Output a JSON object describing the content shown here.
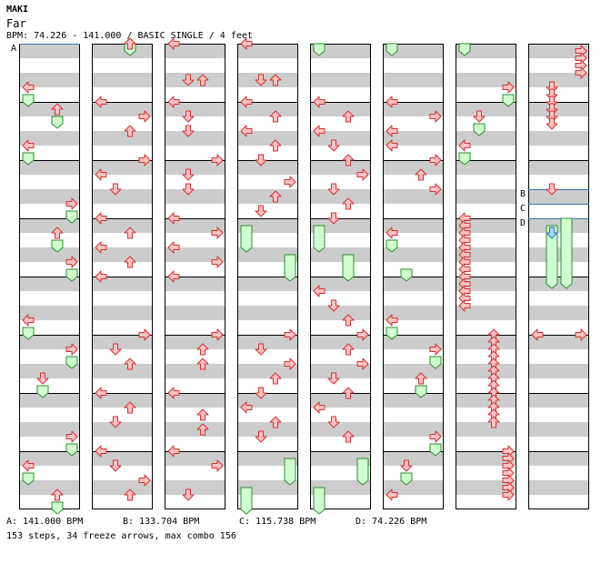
{
  "header": {
    "artist": "MAKI",
    "title": "Far",
    "info": "BPM: 74.226 - 141.000 / BASIC SINGLE / 4 feet"
  },
  "footer": {
    "bpm_changes": [
      {
        "label": "A",
        "text": "A: 141.000 BPM"
      },
      {
        "label": "B",
        "text": "B: 133.704 BPM"
      },
      {
        "label": "C",
        "text": "C: 115.738 BPM"
      },
      {
        "label": "D",
        "text": "D: 74.226 BPM"
      }
    ],
    "summary": "153 steps, 34 freeze arrows, max combo 156"
  },
  "colors": {
    "arrow_fill": "#ffc2c2",
    "arrow_stroke": "#d23232",
    "freeze_fill": "#cfffcf",
    "freeze_stroke": "#2e8b2e",
    "freeze_head_fill": "#a6d8ff",
    "freeze_head_stroke": "#2f6fb0",
    "stripe_gray": "#cccccc",
    "bpm_line": "#3b6fb5"
  },
  "chart_data": {
    "type": "step-chart",
    "arrow_directions": [
      "left",
      "down",
      "up",
      "right"
    ],
    "columns": 8,
    "measures_per_column": 8,
    "bpm_markers": [
      {
        "label": "A",
        "column": 0,
        "beat": 0
      },
      {
        "label": "B",
        "column": 7,
        "beat": 20
      },
      {
        "label": "C",
        "column": 7,
        "beat": 22
      },
      {
        "label": "D",
        "column": 7,
        "beat": 24
      }
    ],
    "freezes": [
      {
        "c": 0,
        "lane": 0,
        "b": 7,
        "e": 8
      },
      {
        "c": 0,
        "lane": 2,
        "b": 10,
        "e": 11
      },
      {
        "c": 0,
        "lane": 0,
        "b": 15,
        "e": 16
      },
      {
        "c": 0,
        "lane": 3,
        "b": 23,
        "e": 24
      },
      {
        "c": 0,
        "lane": 2,
        "b": 27,
        "e": 28
      },
      {
        "c": 0,
        "lane": 3,
        "b": 31,
        "e": 32
      },
      {
        "c": 0,
        "lane": 0,
        "b": 39,
        "e": 40
      },
      {
        "c": 0,
        "lane": 3,
        "b": 43,
        "e": 44
      },
      {
        "c": 0,
        "lane": 1,
        "b": 47,
        "e": 48
      },
      {
        "c": 0,
        "lane": 3,
        "b": 55,
        "e": 56
      },
      {
        "c": 0,
        "lane": 0,
        "b": 59,
        "e": 60
      },
      {
        "c": 0,
        "lane": 2,
        "b": 63,
        "e": 64
      },
      {
        "c": 1,
        "lane": 2,
        "b": 0,
        "e": 1
      },
      {
        "c": 3,
        "lane": 0,
        "b": 25,
        "e": 28
      },
      {
        "c": 3,
        "lane": 3,
        "b": 29,
        "e": 32
      },
      {
        "c": 3,
        "lane": 3,
        "b": 57,
        "e": 60
      },
      {
        "c": 3,
        "lane": 0,
        "b": 61,
        "e": 64
      },
      {
        "c": 4,
        "lane": 0,
        "b": 0,
        "e": 1
      },
      {
        "c": 4,
        "lane": 0,
        "b": 25,
        "e": 28
      },
      {
        "c": 4,
        "lane": 2,
        "b": 29,
        "e": 32
      },
      {
        "c": 4,
        "lane": 3,
        "b": 57,
        "e": 60
      },
      {
        "c": 4,
        "lane": 0,
        "b": 61,
        "e": 64
      },
      {
        "c": 5,
        "lane": 0,
        "b": 0,
        "e": 1
      },
      {
        "c": 5,
        "lane": 0,
        "b": 27,
        "e": 28
      },
      {
        "c": 5,
        "lane": 1,
        "b": 31,
        "e": 32
      },
      {
        "c": 5,
        "lane": 0,
        "b": 39,
        "e": 40
      },
      {
        "c": 5,
        "lane": 3,
        "b": 43,
        "e": 44
      },
      {
        "c": 5,
        "lane": 2,
        "b": 47,
        "e": 48
      },
      {
        "c": 5,
        "lane": 3,
        "b": 55,
        "e": 56
      },
      {
        "c": 5,
        "lane": 1,
        "b": 59,
        "e": 60
      },
      {
        "c": 6,
        "lane": 0,
        "b": 0,
        "e": 1
      },
      {
        "c": 6,
        "lane": 3,
        "b": 7,
        "e": 8
      },
      {
        "c": 6,
        "lane": 1,
        "b": 11,
        "e": 12
      },
      {
        "c": 6,
        "lane": 0,
        "b": 15,
        "e": 16
      },
      {
        "c": 7,
        "lane": 1,
        "b": 25,
        "e": 33
      },
      {
        "c": 7,
        "lane": 2,
        "b": 24,
        "e": 33
      }
    ],
    "arrows": [
      {
        "c": 0,
        "lane": 0,
        "b": 6
      },
      {
        "c": 0,
        "lane": 2,
        "b": 9
      },
      {
        "c": 0,
        "lane": 0,
        "b": 14
      },
      {
        "c": 0,
        "lane": 3,
        "b": 22
      },
      {
        "c": 0,
        "lane": 2,
        "b": 26
      },
      {
        "c": 0,
        "lane": 3,
        "b": 30
      },
      {
        "c": 0,
        "lane": 0,
        "b": 38
      },
      {
        "c": 0,
        "lane": 3,
        "b": 42
      },
      {
        "c": 0,
        "lane": 1,
        "b": 46
      },
      {
        "c": 0,
        "lane": 3,
        "b": 54
      },
      {
        "c": 0,
        "lane": 0,
        "b": 58
      },
      {
        "c": 0,
        "lane": 2,
        "b": 62
      },
      {
        "c": 1,
        "lane": 2,
        "b": 0
      },
      {
        "c": 1,
        "lane": 0,
        "b": 8
      },
      {
        "c": 1,
        "lane": 3,
        "b": 10
      },
      {
        "c": 1,
        "lane": 2,
        "b": 12
      },
      {
        "c": 1,
        "lane": 3,
        "b": 16
      },
      {
        "c": 1,
        "lane": 0,
        "b": 18
      },
      {
        "c": 1,
        "lane": 1,
        "b": 20
      },
      {
        "c": 1,
        "lane": 0,
        "b": 24
      },
      {
        "c": 1,
        "lane": 2,
        "b": 26
      },
      {
        "c": 1,
        "lane": 0,
        "b": 28
      },
      {
        "c": 1,
        "lane": 2,
        "b": 30
      },
      {
        "c": 1,
        "lane": 0,
        "b": 32
      },
      {
        "c": 1,
        "lane": 3,
        "b": 40
      },
      {
        "c": 1,
        "lane": 1,
        "b": 42
      },
      {
        "c": 1,
        "lane": 2,
        "b": 44
      },
      {
        "c": 1,
        "lane": 0,
        "b": 48
      },
      {
        "c": 1,
        "lane": 2,
        "b": 50
      },
      {
        "c": 1,
        "lane": 1,
        "b": 52
      },
      {
        "c": 1,
        "lane": 0,
        "b": 56
      },
      {
        "c": 1,
        "lane": 1,
        "b": 58
      },
      {
        "c": 1,
        "lane": 3,
        "b": 60
      },
      {
        "c": 1,
        "lane": 2,
        "b": 62
      },
      {
        "c": 2,
        "lane": 0,
        "b": 0
      },
      {
        "c": 2,
        "lane": 1,
        "b": 5
      },
      {
        "c": 2,
        "lane": 2,
        "b": 5
      },
      {
        "c": 2,
        "lane": 0,
        "b": 8
      },
      {
        "c": 2,
        "lane": 1,
        "b": 10
      },
      {
        "c": 2,
        "lane": 1,
        "b": 12
      },
      {
        "c": 2,
        "lane": 3,
        "b": 16
      },
      {
        "c": 2,
        "lane": 1,
        "b": 18
      },
      {
        "c": 2,
        "lane": 1,
        "b": 20
      },
      {
        "c": 2,
        "lane": 0,
        "b": 24
      },
      {
        "c": 2,
        "lane": 3,
        "b": 26
      },
      {
        "c": 2,
        "lane": 0,
        "b": 28
      },
      {
        "c": 2,
        "lane": 3,
        "b": 30
      },
      {
        "c": 2,
        "lane": 0,
        "b": 32
      },
      {
        "c": 2,
        "lane": 3,
        "b": 40
      },
      {
        "c": 2,
        "lane": 2,
        "b": 42
      },
      {
        "c": 2,
        "lane": 2,
        "b": 44
      },
      {
        "c": 2,
        "lane": 0,
        "b": 48
      },
      {
        "c": 2,
        "lane": 2,
        "b": 51
      },
      {
        "c": 2,
        "lane": 2,
        "b": 53
      },
      {
        "c": 2,
        "lane": 0,
        "b": 56
      },
      {
        "c": 2,
        "lane": 3,
        "b": 58
      },
      {
        "c": 2,
        "lane": 1,
        "b": 62
      },
      {
        "c": 3,
        "lane": 0,
        "b": 0
      },
      {
        "c": 3,
        "lane": 1,
        "b": 5
      },
      {
        "c": 3,
        "lane": 2,
        "b": 5
      },
      {
        "c": 3,
        "lane": 0,
        "b": 8
      },
      {
        "c": 3,
        "lane": 2,
        "b": 10
      },
      {
        "c": 3,
        "lane": 0,
        "b": 12
      },
      {
        "c": 3,
        "lane": 2,
        "b": 14
      },
      {
        "c": 3,
        "lane": 1,
        "b": 16
      },
      {
        "c": 3,
        "lane": 3,
        "b": 19
      },
      {
        "c": 3,
        "lane": 2,
        "b": 21
      },
      {
        "c": 3,
        "lane": 1,
        "b": 23
      },
      {
        "c": 3,
        "lane": 3,
        "b": 40
      },
      {
        "c": 3,
        "lane": 1,
        "b": 42
      },
      {
        "c": 3,
        "lane": 3,
        "b": 44
      },
      {
        "c": 3,
        "lane": 2,
        "b": 46
      },
      {
        "c": 3,
        "lane": 1,
        "b": 48
      },
      {
        "c": 3,
        "lane": 0,
        "b": 50
      },
      {
        "c": 3,
        "lane": 2,
        "b": 52
      },
      {
        "c": 3,
        "lane": 1,
        "b": 54
      },
      {
        "c": 4,
        "lane": 0,
        "b": 8
      },
      {
        "c": 4,
        "lane": 2,
        "b": 10
      },
      {
        "c": 4,
        "lane": 0,
        "b": 12
      },
      {
        "c": 4,
        "lane": 1,
        "b": 14
      },
      {
        "c": 4,
        "lane": 2,
        "b": 16
      },
      {
        "c": 4,
        "lane": 3,
        "b": 18
      },
      {
        "c": 4,
        "lane": 1,
        "b": 20
      },
      {
        "c": 4,
        "lane": 2,
        "b": 22
      },
      {
        "c": 4,
        "lane": 1,
        "b": 24
      },
      {
        "c": 4,
        "lane": 0,
        "b": 34
      },
      {
        "c": 4,
        "lane": 1,
        "b": 36
      },
      {
        "c": 4,
        "lane": 2,
        "b": 38
      },
      {
        "c": 4,
        "lane": 3,
        "b": 40
      },
      {
        "c": 4,
        "lane": 2,
        "b": 42
      },
      {
        "c": 4,
        "lane": 3,
        "b": 44
      },
      {
        "c": 4,
        "lane": 1,
        "b": 46
      },
      {
        "c": 4,
        "lane": 2,
        "b": 48
      },
      {
        "c": 4,
        "lane": 0,
        "b": 50
      },
      {
        "c": 4,
        "lane": 1,
        "b": 52
      },
      {
        "c": 4,
        "lane": 2,
        "b": 54
      },
      {
        "c": 5,
        "lane": 0,
        "b": 8
      },
      {
        "c": 5,
        "lane": 3,
        "b": 10
      },
      {
        "c": 5,
        "lane": 0,
        "b": 12
      },
      {
        "c": 5,
        "lane": 0,
        "b": 14
      },
      {
        "c": 5,
        "lane": 3,
        "b": 16
      },
      {
        "c": 5,
        "lane": 2,
        "b": 18
      },
      {
        "c": 5,
        "lane": 3,
        "b": 20
      },
      {
        "c": 5,
        "lane": 0,
        "b": 26
      },
      {
        "c": 5,
        "lane": 0,
        "b": 38
      },
      {
        "c": 5,
        "lane": 3,
        "b": 42
      },
      {
        "c": 5,
        "lane": 2,
        "b": 46
      },
      {
        "c": 5,
        "lane": 3,
        "b": 54
      },
      {
        "c": 5,
        "lane": 1,
        "b": 58
      },
      {
        "c": 5,
        "lane": 0,
        "b": 62
      },
      {
        "c": 6,
        "lane": 3,
        "b": 6
      },
      {
        "c": 6,
        "lane": 1,
        "b": 10
      },
      {
        "c": 6,
        "lane": 0,
        "b": 14
      },
      {
        "c": 6,
        "lane": 0,
        "b": 24
      },
      {
        "c": 6,
        "lane": 0,
        "b": 25
      },
      {
        "c": 6,
        "lane": 0,
        "b": 26
      },
      {
        "c": 6,
        "lane": 0,
        "b": 27
      },
      {
        "c": 6,
        "lane": 0,
        "b": 28
      },
      {
        "c": 6,
        "lane": 0,
        "b": 29
      },
      {
        "c": 6,
        "lane": 0,
        "b": 30
      },
      {
        "c": 6,
        "lane": 0,
        "b": 31
      },
      {
        "c": 6,
        "lane": 0,
        "b": 32
      },
      {
        "c": 6,
        "lane": 0,
        "b": 33
      },
      {
        "c": 6,
        "lane": 0,
        "b": 34
      },
      {
        "c": 6,
        "lane": 0,
        "b": 35
      },
      {
        "c": 6,
        "lane": 0,
        "b": 36
      },
      {
        "c": 6,
        "lane": 2,
        "b": 40
      },
      {
        "c": 6,
        "lane": 2,
        "b": 41
      },
      {
        "c": 6,
        "lane": 2,
        "b": 42
      },
      {
        "c": 6,
        "lane": 2,
        "b": 43
      },
      {
        "c": 6,
        "lane": 2,
        "b": 44
      },
      {
        "c": 6,
        "lane": 2,
        "b": 45
      },
      {
        "c": 6,
        "lane": 2,
        "b": 46
      },
      {
        "c": 6,
        "lane": 2,
        "b": 47
      },
      {
        "c": 6,
        "lane": 2,
        "b": 48
      },
      {
        "c": 6,
        "lane": 2,
        "b": 49
      },
      {
        "c": 6,
        "lane": 2,
        "b": 50
      },
      {
        "c": 6,
        "lane": 2,
        "b": 51
      },
      {
        "c": 6,
        "lane": 2,
        "b": 52
      },
      {
        "c": 6,
        "lane": 3,
        "b": 56
      },
      {
        "c": 6,
        "lane": 3,
        "b": 57
      },
      {
        "c": 6,
        "lane": 3,
        "b": 58
      },
      {
        "c": 6,
        "lane": 3,
        "b": 59
      },
      {
        "c": 6,
        "lane": 3,
        "b": 60
      },
      {
        "c": 6,
        "lane": 3,
        "b": 61
      },
      {
        "c": 6,
        "lane": 3,
        "b": 62
      },
      {
        "c": 7,
        "lane": 3,
        "b": 1
      },
      {
        "c": 7,
        "lane": 3,
        "b": 2
      },
      {
        "c": 7,
        "lane": 3,
        "b": 3
      },
      {
        "c": 7,
        "lane": 3,
        "b": 4
      },
      {
        "c": 7,
        "lane": 1,
        "b": 6
      },
      {
        "c": 7,
        "lane": 1,
        "b": 7
      },
      {
        "c": 7,
        "lane": 1,
        "b": 8
      },
      {
        "c": 7,
        "lane": 1,
        "b": 9
      },
      {
        "c": 7,
        "lane": 1,
        "b": 10
      },
      {
        "c": 7,
        "lane": 1,
        "b": 11
      },
      {
        "c": 7,
        "lane": 1,
        "b": 20
      },
      {
        "c": 7,
        "lane": 0,
        "b": 40
      },
      {
        "c": 7,
        "lane": 3,
        "b": 40
      }
    ]
  }
}
